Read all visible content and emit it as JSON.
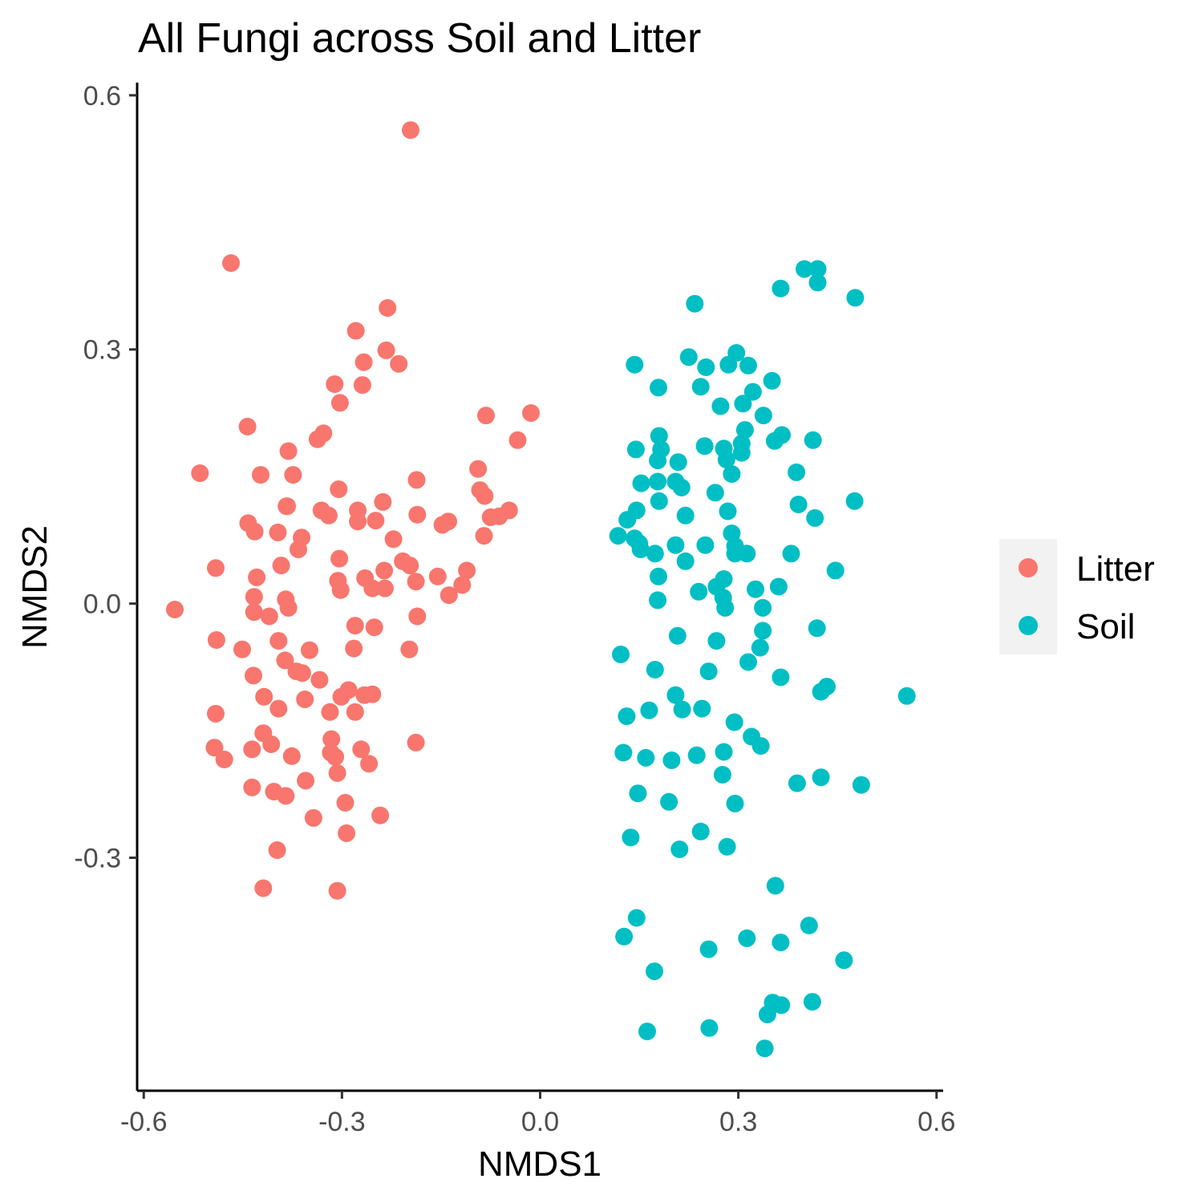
{
  "chart_data": {
    "type": "scatter",
    "title": "All Fungi across Soil and Litter",
    "xlabel": "NMDS1",
    "ylabel": "NMDS2",
    "xlim": [
      -0.61,
      0.61
    ],
    "ylim": [
      -0.575,
      0.615
    ],
    "xticks": [
      -0.6,
      -0.3,
      0.0,
      0.3,
      0.6
    ],
    "xtick_labels": [
      "-0.6",
      "-0.3",
      "0.0",
      "0.3",
      "0.6"
    ],
    "yticks": [
      -0.3,
      0.0,
      0.3,
      0.6
    ],
    "ytick_labels": [
      "-0.3",
      "0.0",
      "0.3",
      "0.6"
    ],
    "grid": false,
    "legend_position": "right",
    "series": [
      {
        "name": "Litter",
        "color": "#F8766D",
        "points": [
          [
            -0.196,
            0.559
          ],
          [
            -0.468,
            0.402
          ],
          [
            -0.231,
            0.349
          ],
          [
            -0.279,
            0.322
          ],
          [
            -0.233,
            0.299
          ],
          [
            -0.267,
            0.285
          ],
          [
            -0.214,
            0.283
          ],
          [
            -0.311,
            0.259
          ],
          [
            -0.269,
            0.258
          ],
          [
            -0.303,
            0.237
          ],
          [
            -0.082,
            0.222
          ],
          [
            -0.443,
            0.209
          ],
          [
            -0.328,
            0.201
          ],
          [
            -0.337,
            0.194
          ],
          [
            -0.014,
            0.225
          ],
          [
            -0.034,
            0.193
          ],
          [
            -0.381,
            0.18
          ],
          [
            -0.515,
            0.154
          ],
          [
            -0.423,
            0.152
          ],
          [
            -0.374,
            0.152
          ],
          [
            -0.094,
            0.159
          ],
          [
            -0.187,
            0.146
          ],
          [
            -0.305,
            0.135
          ],
          [
            -0.091,
            0.134
          ],
          [
            -0.084,
            0.127
          ],
          [
            -0.238,
            0.12
          ],
          [
            -0.383,
            0.115
          ],
          [
            -0.331,
            0.11
          ],
          [
            -0.276,
            0.11
          ],
          [
            -0.047,
            0.11
          ],
          [
            -0.384,
            0.115
          ],
          [
            -0.32,
            0.104
          ],
          [
            -0.186,
            0.105
          ],
          [
            -0.075,
            0.102
          ],
          [
            -0.062,
            0.103
          ],
          [
            -0.276,
            0.097
          ],
          [
            -0.249,
            0.098
          ],
          [
            -0.139,
            0.097
          ],
          [
            -0.148,
            0.093
          ],
          [
            -0.442,
            0.095
          ],
          [
            -0.432,
            0.085
          ],
          [
            -0.397,
            0.084
          ],
          [
            -0.085,
            0.08
          ],
          [
            -0.361,
            0.078
          ],
          [
            -0.222,
            0.076
          ],
          [
            -0.366,
            0.064
          ],
          [
            -0.208,
            0.05
          ],
          [
            -0.304,
            0.053
          ],
          [
            -0.197,
            0.045
          ],
          [
            -0.392,
            0.045
          ],
          [
            -0.491,
            0.042
          ],
          [
            -0.236,
            0.039
          ],
          [
            -0.111,
            0.039
          ],
          [
            -0.155,
            0.032
          ],
          [
            -0.429,
            0.031
          ],
          [
            -0.188,
            0.026
          ],
          [
            -0.306,
            0.027
          ],
          [
            -0.265,
            0.03
          ],
          [
            -0.254,
            0.018
          ],
          [
            -0.235,
            0.018
          ],
          [
            -0.302,
            0.016
          ],
          [
            -0.118,
            0.022
          ],
          [
            -0.138,
            0.01
          ],
          [
            -0.433,
            0.008
          ],
          [
            -0.385,
            0.005
          ],
          [
            -0.381,
            -0.005
          ],
          [
            -0.433,
            -0.01
          ],
          [
            -0.41,
            -0.015
          ],
          [
            -0.553,
            -0.007
          ],
          [
            -0.186,
            -0.015
          ],
          [
            -0.28,
            -0.026
          ],
          [
            -0.251,
            -0.028
          ],
          [
            -0.49,
            -0.043
          ],
          [
            -0.396,
            -0.044
          ],
          [
            -0.451,
            -0.054
          ],
          [
            -0.349,
            -0.055
          ],
          [
            -0.282,
            -0.053
          ],
          [
            -0.198,
            -0.054
          ],
          [
            -0.386,
            -0.067
          ],
          [
            -0.369,
            -0.08
          ],
          [
            -0.36,
            -0.082
          ],
          [
            -0.434,
            -0.085
          ],
          [
            -0.334,
            -0.09
          ],
          [
            -0.29,
            -0.102
          ],
          [
            -0.301,
            -0.11
          ],
          [
            -0.266,
            -0.108
          ],
          [
            -0.254,
            -0.107
          ],
          [
            -0.418,
            -0.11
          ],
          [
            -0.356,
            -0.113
          ],
          [
            -0.396,
            -0.124
          ],
          [
            -0.491,
            -0.13
          ],
          [
            -0.318,
            -0.128
          ],
          [
            -0.28,
            -0.128
          ],
          [
            -0.419,
            -0.153
          ],
          [
            -0.407,
            -0.166
          ],
          [
            -0.316,
            -0.16
          ],
          [
            -0.188,
            -0.164
          ],
          [
            -0.493,
            -0.17
          ],
          [
            -0.436,
            -0.172
          ],
          [
            -0.271,
            -0.172
          ],
          [
            -0.317,
            -0.176
          ],
          [
            -0.31,
            -0.181
          ],
          [
            -0.376,
            -0.18
          ],
          [
            -0.478,
            -0.184
          ],
          [
            -0.259,
            -0.189
          ],
          [
            -0.307,
            -0.2
          ],
          [
            -0.355,
            -0.209
          ],
          [
            -0.436,
            -0.217
          ],
          [
            -0.403,
            -0.222
          ],
          [
            -0.385,
            -0.227
          ],
          [
            -0.295,
            -0.235
          ],
          [
            -0.343,
            -0.253
          ],
          [
            -0.242,
            -0.25
          ],
          [
            -0.293,
            -0.271
          ],
          [
            -0.398,
            -0.291
          ],
          [
            -0.419,
            -0.336
          ],
          [
            -0.307,
            -0.339
          ]
        ]
      },
      {
        "name": "Soil",
        "color": "#00BFC4",
        "points": [
          [
            0.4,
            0.395
          ],
          [
            0.42,
            0.395
          ],
          [
            0.42,
            0.379
          ],
          [
            0.364,
            0.372
          ],
          [
            0.477,
            0.361
          ],
          [
            0.234,
            0.354
          ],
          [
            0.297,
            0.296
          ],
          [
            0.225,
            0.291
          ],
          [
            0.143,
            0.282
          ],
          [
            0.251,
            0.279
          ],
          [
            0.285,
            0.282
          ],
          [
            0.315,
            0.281
          ],
          [
            0.351,
            0.263
          ],
          [
            0.243,
            0.256
          ],
          [
            0.179,
            0.255
          ],
          [
            0.322,
            0.25
          ],
          [
            0.307,
            0.236
          ],
          [
            0.273,
            0.233
          ],
          [
            0.338,
            0.222
          ],
          [
            0.31,
            0.205
          ],
          [
            0.18,
            0.198
          ],
          [
            0.366,
            0.199
          ],
          [
            0.355,
            0.192
          ],
          [
            0.413,
            0.193
          ],
          [
            0.305,
            0.189
          ],
          [
            0.278,
            0.183
          ],
          [
            0.249,
            0.186
          ],
          [
            0.183,
            0.182
          ],
          [
            0.145,
            0.182
          ],
          [
            0.305,
            0.178
          ],
          [
            0.282,
            0.17
          ],
          [
            0.178,
            0.169
          ],
          [
            0.209,
            0.167
          ],
          [
            0.388,
            0.155
          ],
          [
            0.29,
            0.153
          ],
          [
            0.153,
            0.142
          ],
          [
            0.178,
            0.144
          ],
          [
            0.205,
            0.144
          ],
          [
            0.214,
            0.137
          ],
          [
            0.265,
            0.131
          ],
          [
            0.18,
            0.121
          ],
          [
            0.476,
            0.121
          ],
          [
            0.391,
            0.117
          ],
          [
            0.146,
            0.11
          ],
          [
            0.284,
            0.109
          ],
          [
            0.22,
            0.104
          ],
          [
            0.132,
            0.099
          ],
          [
            0.416,
            0.101
          ],
          [
            0.29,
            0.083
          ],
          [
            0.118,
            0.08
          ],
          [
            0.143,
            0.077
          ],
          [
            0.15,
            0.071
          ],
          [
            0.205,
            0.069
          ],
          [
            0.25,
            0.069
          ],
          [
            0.295,
            0.068
          ],
          [
            0.152,
            0.064
          ],
          [
            0.174,
            0.059
          ],
          [
            0.295,
            0.059
          ],
          [
            0.313,
            0.059
          ],
          [
            0.38,
            0.059
          ],
          [
            0.22,
            0.05
          ],
          [
            0.447,
            0.039
          ],
          [
            0.179,
            0.032
          ],
          [
            0.278,
            0.029
          ],
          [
            0.267,
            0.02
          ],
          [
            0.361,
            0.02
          ],
          [
            0.326,
            0.017
          ],
          [
            0.24,
            0.014
          ],
          [
            0.277,
            0.007
          ],
          [
            0.178,
            0.004
          ],
          [
            0.28,
            -0.005
          ],
          [
            0.337,
            -0.005
          ],
          [
            0.419,
            -0.029
          ],
          [
            0.337,
            -0.032
          ],
          [
            0.208,
            -0.038
          ],
          [
            0.267,
            -0.044
          ],
          [
            0.333,
            -0.052
          ],
          [
            0.122,
            -0.06
          ],
          [
            0.315,
            -0.069
          ],
          [
            0.174,
            -0.078
          ],
          [
            0.255,
            -0.08
          ],
          [
            0.364,
            -0.087
          ],
          [
            0.434,
            -0.098
          ],
          [
            0.425,
            -0.104
          ],
          [
            0.555,
            -0.109
          ],
          [
            0.205,
            -0.108
          ],
          [
            0.215,
            -0.125
          ],
          [
            0.245,
            -0.124
          ],
          [
            0.165,
            -0.126
          ],
          [
            0.131,
            -0.133
          ],
          [
            0.294,
            -0.14
          ],
          [
            0.32,
            -0.157
          ],
          [
            0.334,
            -0.168
          ],
          [
            0.126,
            -0.176
          ],
          [
            0.278,
            -0.175
          ],
          [
            0.237,
            -0.179
          ],
          [
            0.16,
            -0.182
          ],
          [
            0.199,
            -0.185
          ],
          [
            0.276,
            -0.202
          ],
          [
            0.425,
            -0.205
          ],
          [
            0.389,
            -0.212
          ],
          [
            0.486,
            -0.214
          ],
          [
            0.148,
            -0.224
          ],
          [
            0.295,
            -0.236
          ],
          [
            0.195,
            -0.234
          ],
          [
            0.243,
            -0.269
          ],
          [
            0.137,
            -0.276
          ],
          [
            0.283,
            -0.287
          ],
          [
            0.211,
            -0.29
          ],
          [
            0.356,
            -0.333
          ],
          [
            0.146,
            -0.371
          ],
          [
            0.407,
            -0.38
          ],
          [
            0.127,
            -0.393
          ],
          [
            0.313,
            -0.395
          ],
          [
            0.364,
            -0.4
          ],
          [
            0.255,
            -0.408
          ],
          [
            0.46,
            -0.421
          ],
          [
            0.173,
            -0.434
          ],
          [
            0.412,
            -0.47
          ],
          [
            0.352,
            -0.471
          ],
          [
            0.365,
            -0.474
          ],
          [
            0.344,
            -0.485
          ],
          [
            0.256,
            -0.501
          ],
          [
            0.162,
            -0.505
          ],
          [
            0.34,
            -0.525
          ]
        ]
      }
    ]
  }
}
